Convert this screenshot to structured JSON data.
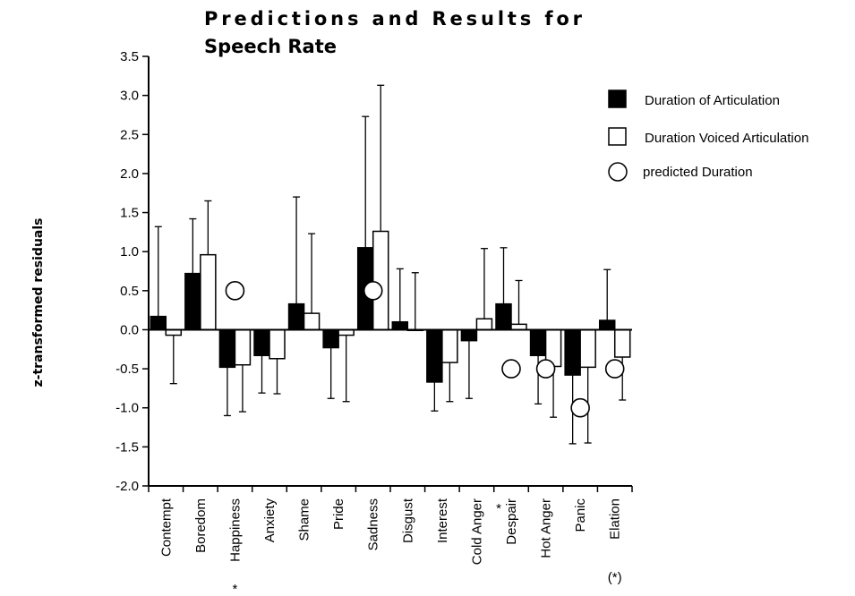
{
  "chart_data": {
    "type": "bar",
    "title_lines": [
      "Predictions and Results for",
      "Speech Rate"
    ],
    "xlabel": "",
    "ylabel": "z-transformed residuals",
    "ylim": [
      -2.0,
      3.5
    ],
    "yticks": [
      "3.5",
      "3.0",
      "2.5",
      "2.0",
      "1.5",
      "1.0",
      "0.5",
      "0.0",
      "-0.5",
      "-1.0",
      "-1.5",
      "-2.0"
    ],
    "ytick_values": [
      3.5,
      3.0,
      2.5,
      2.0,
      1.5,
      1.0,
      0.5,
      0.0,
      -0.5,
      -1.0,
      -1.5,
      -2.0
    ],
    "categories": [
      "Contempt",
      "Boredom",
      "Happiness",
      "Anxiety",
      "Shame",
      "Pride",
      "Sadness",
      "Disgust",
      "Interest",
      "Cold Anger",
      "Despair",
      "Hot Anger",
      "Panic",
      "Elation"
    ],
    "category_notes": [
      "",
      "",
      "*",
      "",
      "",
      "",
      "",
      "",
      "",
      "",
      "*",
      "",
      "",
      "(*)"
    ],
    "series": [
      {
        "name": "Duration of Articulation",
        "fill": "#000000",
        "values": [
          0.17,
          0.72,
          -0.48,
          -0.33,
          0.33,
          -0.23,
          1.05,
          0.1,
          -0.67,
          -0.14,
          0.33,
          -0.33,
          -0.58,
          0.12
        ],
        "errors": [
          1.15,
          0.7,
          0.62,
          0.48,
          1.37,
          0.65,
          1.68,
          0.68,
          0.37,
          0.74,
          0.72,
          0.62,
          0.88,
          0.65
        ]
      },
      {
        "name": "Duration Voiced Articulation",
        "fill": "#ffffff",
        "values": [
          -0.07,
          0.96,
          -0.45,
          -0.37,
          0.21,
          -0.07,
          1.26,
          0.0,
          -0.42,
          0.14,
          0.07,
          -0.47,
          -0.48,
          -0.35
        ],
        "errors": [
          0.62,
          0.69,
          0.6,
          0.45,
          1.02,
          0.85,
          1.87,
          0.73,
          0.5,
          0.9,
          0.56,
          0.65,
          0.97,
          0.55
        ]
      }
    ],
    "predicted": {
      "name": "predicted Duration",
      "marker": "open-circle",
      "values": [
        null,
        null,
        0.5,
        null,
        null,
        null,
        0.5,
        null,
        null,
        null,
        -0.5,
        -0.5,
        -1.0,
        -0.5
      ]
    },
    "legend_position": "top-right",
    "grid": false
  }
}
